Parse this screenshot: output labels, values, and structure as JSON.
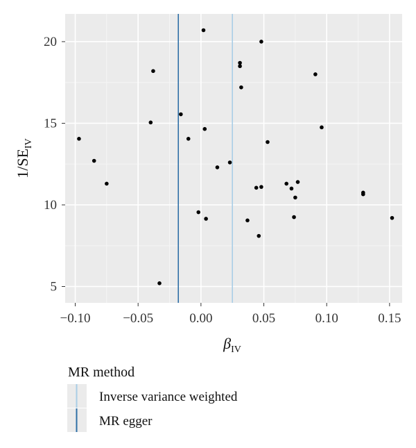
{
  "chart_data": {
    "type": "scatter",
    "xlabel": {
      "main": "β",
      "sub": "IV"
    },
    "ylabel": {
      "main": "1/SE",
      "sub": "IV"
    },
    "xlim": [
      -0.108,
      0.16
    ],
    "ylim": [
      4.0,
      21.7
    ],
    "x_ticks": [
      -0.1,
      -0.05,
      0.0,
      0.05,
      0.1,
      0.15
    ],
    "x_tick_labels": [
      "−0.10",
      "−0.05",
      "0.00",
      "0.05",
      "0.10",
      "0.15"
    ],
    "y_ticks": [
      5,
      10,
      15,
      20
    ],
    "y_tick_labels": [
      "5",
      "10",
      "15",
      "20"
    ],
    "grid": true,
    "points": [
      {
        "x": 0.002,
        "y": 20.7
      },
      {
        "x": 0.048,
        "y": 20.0
      },
      {
        "x": 0.031,
        "y": 18.7
      },
      {
        "x": 0.031,
        "y": 18.5
      },
      {
        "x": -0.038,
        "y": 18.2
      },
      {
        "x": 0.091,
        "y": 18.0
      },
      {
        "x": 0.032,
        "y": 17.2
      },
      {
        "x": -0.016,
        "y": 15.55
      },
      {
        "x": -0.04,
        "y": 15.05
      },
      {
        "x": 0.096,
        "y": 14.75
      },
      {
        "x": 0.003,
        "y": 14.65
      },
      {
        "x": -0.097,
        "y": 14.05
      },
      {
        "x": -0.01,
        "y": 14.05
      },
      {
        "x": 0.053,
        "y": 13.85
      },
      {
        "x": -0.085,
        "y": 12.7
      },
      {
        "x": 0.023,
        "y": 12.6
      },
      {
        "x": 0.013,
        "y": 12.3
      },
      {
        "x": -0.075,
        "y": 11.3
      },
      {
        "x": 0.077,
        "y": 11.4
      },
      {
        "x": 0.068,
        "y": 11.3
      },
      {
        "x": 0.044,
        "y": 11.05
      },
      {
        "x": 0.048,
        "y": 11.1
      },
      {
        "x": 0.072,
        "y": 11.0
      },
      {
        "x": 0.129,
        "y": 10.75
      },
      {
        "x": 0.129,
        "y": 10.65
      },
      {
        "x": 0.075,
        "y": 10.45
      },
      {
        "x": -0.002,
        "y": 9.55
      },
      {
        "x": 0.004,
        "y": 9.15
      },
      {
        "x": 0.037,
        "y": 9.05
      },
      {
        "x": 0.074,
        "y": 9.25
      },
      {
        "x": 0.152,
        "y": 9.2
      },
      {
        "x": 0.046,
        "y": 8.1
      },
      {
        "x": -0.033,
        "y": 5.2
      }
    ],
    "lines": [
      {
        "name": "Inverse variance weighted",
        "x": 0.025,
        "color": "#a9cde6"
      },
      {
        "name": "MR egger",
        "x": -0.018,
        "color": "#2f6fa6"
      }
    ],
    "legend": {
      "title": "MR method",
      "placement": "bottom-left",
      "items": [
        "Inverse variance weighted",
        "MR egger"
      ]
    }
  },
  "colors": {
    "panel": "#ebebeb",
    "grid_major": "#ffffff",
    "point": "#000000"
  }
}
